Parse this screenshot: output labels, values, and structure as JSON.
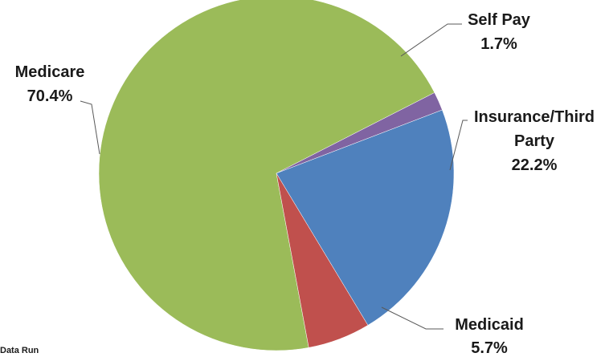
{
  "chart_data": {
    "type": "pie",
    "title": "",
    "categories": [
      "Medicare",
      "Self Pay",
      "Insurance/Third Party",
      "Medicaid"
    ],
    "values": [
      70.4,
      1.7,
      22.2,
      5.7
    ],
    "unit": "%",
    "colors": [
      "#9BBB59",
      "#8064A2",
      "#4F81BD",
      "#C0504D"
    ],
    "labels": [
      {
        "lines": [
          "Medicare",
          "70.4%"
        ]
      },
      {
        "lines": [
          "Self Pay",
          "1.7%"
        ]
      },
      {
        "lines": [
          "Insurance/Third",
          "Party",
          "22.2%"
        ]
      },
      {
        "lines": [
          "Medicaid",
          "5.7%"
        ]
      }
    ],
    "legend": "none",
    "footnote": "Data Run"
  }
}
